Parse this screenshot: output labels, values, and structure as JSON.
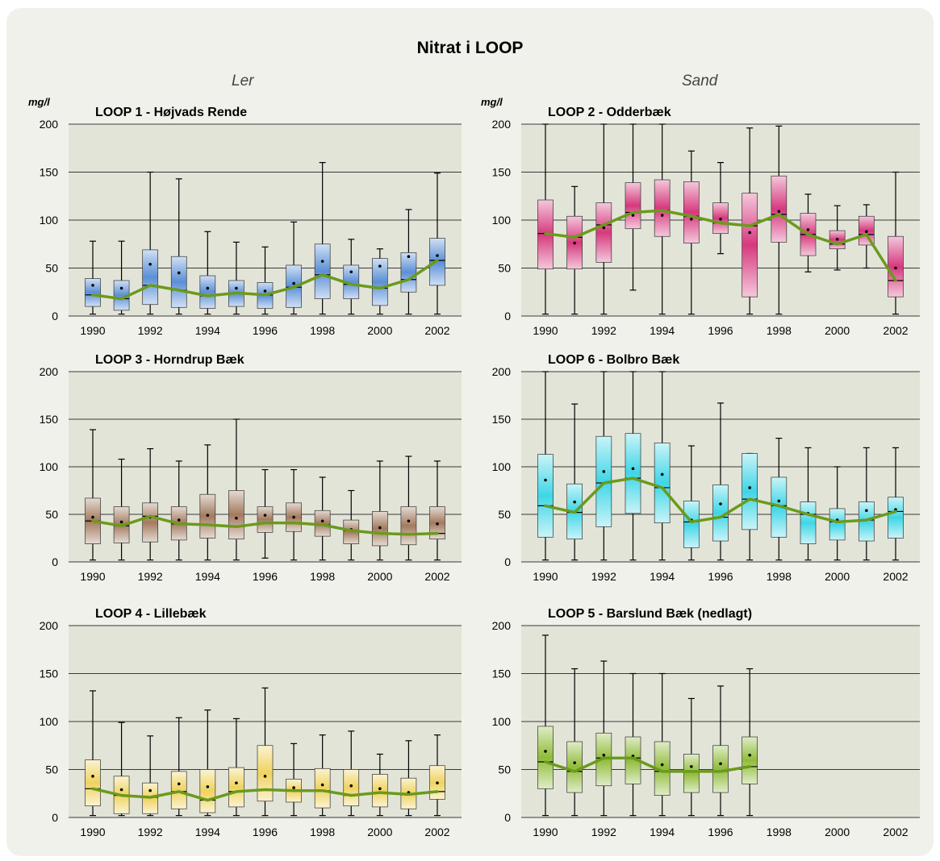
{
  "page_title": "Nitrat i LOOP",
  "columns": {
    "left": "Ler",
    "right": "Sand"
  },
  "y_unit": "mg/l",
  "colors": {
    "median_line": "#6b9a1c",
    "grid": "#3a3a3a"
  },
  "chart_data": [
    {
      "type": "boxplot",
      "title": "LOOP 1 - Højvads Rende",
      "ylabel": "mg/l",
      "ylim": [
        0,
        200
      ],
      "yticks": [
        "0",
        "50",
        "100",
        "150",
        "200"
      ],
      "xticks": [
        "1990",
        "1992",
        "1994",
        "1996",
        "1998",
        "2000",
        "2002"
      ],
      "color": "#5b8fd6",
      "x": [
        1990,
        1991,
        1992,
        1993,
        1994,
        1995,
        1996,
        1997,
        1998,
        1999,
        2000,
        2001,
        2002
      ],
      "whisker_low": [
        2,
        2,
        2,
        2,
        2,
        2,
        2,
        2,
        2,
        2,
        2,
        2,
        2
      ],
      "q1": [
        10,
        6,
        12,
        9,
        8,
        10,
        8,
        9,
        18,
        18,
        11,
        25,
        32
      ],
      "median": [
        22,
        18,
        32,
        27,
        21,
        24,
        22,
        30,
        43,
        33,
        29,
        38,
        58
      ],
      "q3": [
        39,
        37,
        69,
        62,
        42,
        37,
        35,
        53,
        75,
        53,
        60,
        66,
        81
      ],
      "whisker_high": [
        78,
        78,
        150,
        143,
        88,
        77,
        72,
        98,
        160,
        80,
        70,
        111,
        149
      ],
      "mean": [
        32,
        29,
        54,
        45,
        29,
        29,
        26,
        34,
        57,
        46,
        52,
        62,
        63
      ]
    },
    {
      "type": "boxplot",
      "title": "LOOP 2 - Odderbæk",
      "ylabel": "mg/l",
      "ylim": [
        0,
        200
      ],
      "yticks": [
        "0",
        "50",
        "100",
        "150",
        "200"
      ],
      "xticks": [
        "1990",
        "1992",
        "1994",
        "1996",
        "1998",
        "2000",
        "2002"
      ],
      "color": "#d6397e",
      "x": [
        1990,
        1991,
        1992,
        1993,
        1994,
        1995,
        1996,
        1997,
        1998,
        1999,
        2000,
        2001,
        2002
      ],
      "whisker_low": [
        2,
        2,
        2,
        27,
        2,
        2,
        65,
        2,
        2,
        46,
        48,
        50,
        2
      ],
      "q1": [
        49,
        49,
        56,
        91,
        83,
        76,
        86,
        20,
        77,
        63,
        70,
        74,
        20
      ],
      "median": [
        86,
        82,
        95,
        108,
        110,
        104,
        97,
        94,
        106,
        85,
        75,
        85,
        37
      ],
      "q3": [
        121,
        104,
        118,
        139,
        142,
        140,
        118,
        128,
        146,
        107,
        89,
        104,
        83
      ],
      "whisker_high": [
        200,
        135,
        200,
        200,
        200,
        172,
        160,
        196,
        198,
        127,
        115,
        116,
        150
      ],
      "mean": [
        86,
        76,
        92,
        105,
        105,
        101,
        101,
        87,
        109,
        90,
        80,
        88,
        50
      ]
    },
    {
      "type": "boxplot",
      "title": "LOOP 3 - Horndrup Bæk",
      "ylabel": "mg/l",
      "ylim": [
        0,
        200
      ],
      "yticks": [
        "0",
        "50",
        "100",
        "150",
        "200"
      ],
      "xticks": [
        "1990",
        "1992",
        "1994",
        "1996",
        "1998",
        "2000",
        "2002"
      ],
      "color": "#a37a5e",
      "x": [
        1990,
        1991,
        1992,
        1993,
        1994,
        1995,
        1996,
        1997,
        1998,
        1999,
        2000,
        2001,
        2002
      ],
      "whisker_low": [
        2,
        2,
        2,
        2,
        2,
        2,
        4,
        2,
        2,
        2,
        2,
        2,
        2
      ],
      "q1": [
        19,
        20,
        21,
        23,
        25,
        24,
        31,
        32,
        27,
        19,
        17,
        18,
        24
      ],
      "median": [
        43,
        38,
        48,
        40,
        39,
        37,
        41,
        41,
        39,
        33,
        30,
        29,
        30
      ],
      "q3": [
        67,
        58,
        62,
        58,
        71,
        75,
        58,
        62,
        54,
        44,
        53,
        58,
        58
      ],
      "whisker_high": [
        139,
        108,
        119,
        106,
        123,
        150,
        97,
        97,
        89,
        75,
        106,
        111,
        106
      ],
      "mean": [
        47,
        42,
        47,
        44,
        49,
        46,
        49,
        47,
        43,
        34,
        36,
        43,
        40
      ]
    },
    {
      "type": "boxplot",
      "title": "LOOP 6 - Bolbro Bæk",
      "ylabel": "mg/l",
      "ylim": [
        0,
        200
      ],
      "yticks": [
        "0",
        "50",
        "100",
        "150",
        "200"
      ],
      "xticks": [
        "1990",
        "1992",
        "1994",
        "1996",
        "1998",
        "2000",
        "2002"
      ],
      "color": "#3fd6e6",
      "x": [
        1990,
        1991,
        1992,
        1993,
        1994,
        1995,
        1996,
        1997,
        1998,
        1999,
        2000,
        2001,
        2002
      ],
      "whisker_low": [
        2,
        2,
        2,
        2,
        2,
        2,
        2,
        2,
        2,
        2,
        2,
        2,
        2
      ],
      "q1": [
        26,
        24,
        37,
        51,
        41,
        15,
        22,
        34,
        26,
        19,
        23,
        22,
        25
      ],
      "median": [
        59,
        52,
        83,
        88,
        78,
        42,
        47,
        66,
        59,
        50,
        42,
        44,
        53
      ],
      "q3": [
        113,
        82,
        132,
        135,
        125,
        64,
        81,
        114,
        89,
        63,
        56,
        63,
        68
      ],
      "whisker_high": [
        200,
        166,
        200,
        200,
        200,
        122,
        167,
        114,
        130,
        120,
        100,
        120,
        120
      ],
      "mean": [
        86,
        63,
        95,
        98,
        92,
        44,
        61,
        78,
        64,
        51,
        44,
        54,
        55
      ]
    },
    {
      "type": "boxplot",
      "title": "LOOP 4 - Lillebæk",
      "ylabel": "",
      "ylim": [
        0,
        200
      ],
      "yticks": [
        "0",
        "50",
        "100",
        "150",
        "200"
      ],
      "xticks": [
        "1990",
        "1992",
        "1994",
        "1996",
        "1998",
        "2000",
        "2002"
      ],
      "color": "#efd35f",
      "x": [
        1990,
        1991,
        1992,
        1993,
        1994,
        1995,
        1996,
        1997,
        1998,
        1999,
        2000,
        2001,
        2002
      ],
      "whisker_low": [
        2,
        2,
        2,
        2,
        2,
        2,
        2,
        2,
        2,
        2,
        2,
        2,
        2
      ],
      "q1": [
        12,
        4,
        4,
        9,
        5,
        11,
        17,
        16,
        10,
        12,
        11,
        9,
        19
      ],
      "median": [
        30,
        23,
        21,
        27,
        18,
        27,
        29,
        28,
        28,
        23,
        26,
        24,
        27
      ],
      "q3": [
        60,
        43,
        36,
        48,
        50,
        52,
        75,
        40,
        51,
        50,
        45,
        41,
        54
      ],
      "whisker_high": [
        132,
        99,
        85,
        104,
        112,
        103,
        135,
        77,
        86,
        90,
        66,
        80,
        86
      ],
      "mean": [
        43,
        29,
        28,
        35,
        32,
        36,
        43,
        31,
        34,
        33,
        30,
        26,
        36
      ]
    },
    {
      "type": "boxplot",
      "title": "LOOP 5 - Barslund Bæk (nedlagt)",
      "ylabel": "",
      "ylim": [
        0,
        200
      ],
      "yticks": [
        "0",
        "50",
        "100",
        "150",
        "200"
      ],
      "xticks": [
        "1990",
        "1992",
        "1994",
        "1996",
        "1998",
        "2000",
        "2002"
      ],
      "color": "#90bc3a",
      "x": [
        1990,
        1991,
        1992,
        1993,
        1994,
        1995,
        1996,
        1997
      ],
      "whisker_low": [
        2,
        2,
        2,
        2,
        2,
        2,
        2,
        2
      ],
      "q1": [
        30,
        26,
        33,
        35,
        23,
        26,
        26,
        35
      ],
      "median": [
        58,
        48,
        62,
        62,
        48,
        48,
        48,
        53
      ],
      "q3": [
        95,
        79,
        88,
        84,
        79,
        66,
        75,
        84
      ],
      "whisker_high": [
        190,
        155,
        163,
        150,
        150,
        124,
        137,
        155
      ],
      "mean": [
        69,
        57,
        65,
        64,
        55,
        53,
        56,
        65
      ]
    }
  ]
}
